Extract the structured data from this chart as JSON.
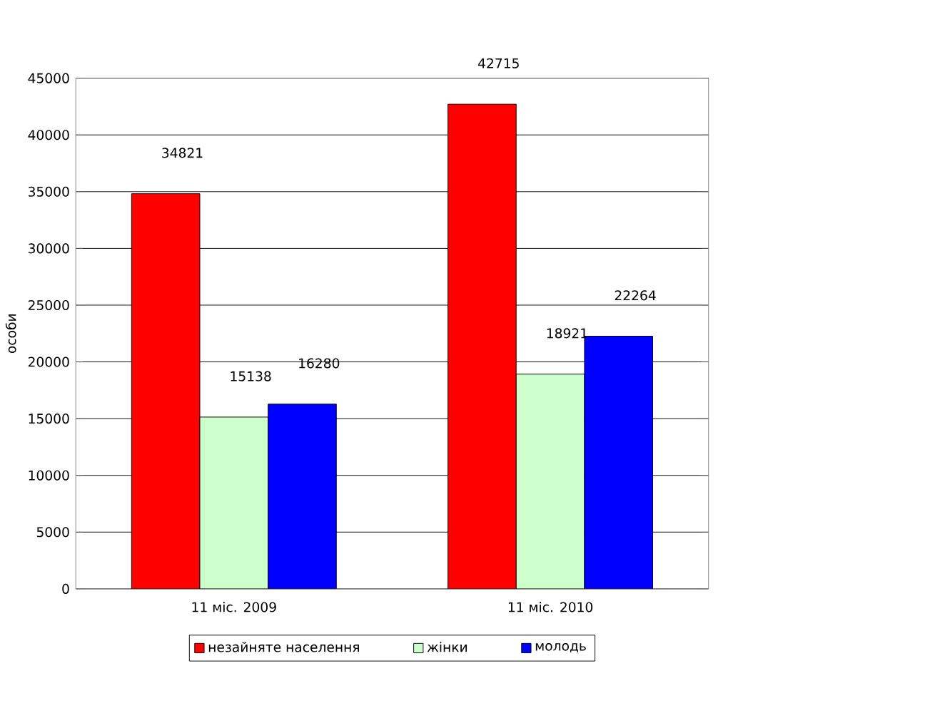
{
  "chart_data": {
    "type": "bar",
    "ylabel": "особи",
    "categories": [
      "11 міс. 2009",
      "11 міс. 2010"
    ],
    "series": [
      {
        "name": "незайняте населення",
        "color": "#ff0000",
        "values": [
          34821,
          42715
        ]
      },
      {
        "name": "жінки",
        "color": "#ccffcc",
        "values": [
          15138,
          18921
        ]
      },
      {
        "name": "молодь",
        "color": "#0000ff",
        "values": [
          16280,
          22264
        ]
      }
    ],
    "ylim": [
      0,
      45000
    ],
    "yticks": [
      0,
      5000,
      10000,
      15000,
      20000,
      25000,
      30000,
      35000,
      40000,
      45000
    ],
    "grid": "y",
    "legend": "bottom",
    "data_labels": true
  }
}
